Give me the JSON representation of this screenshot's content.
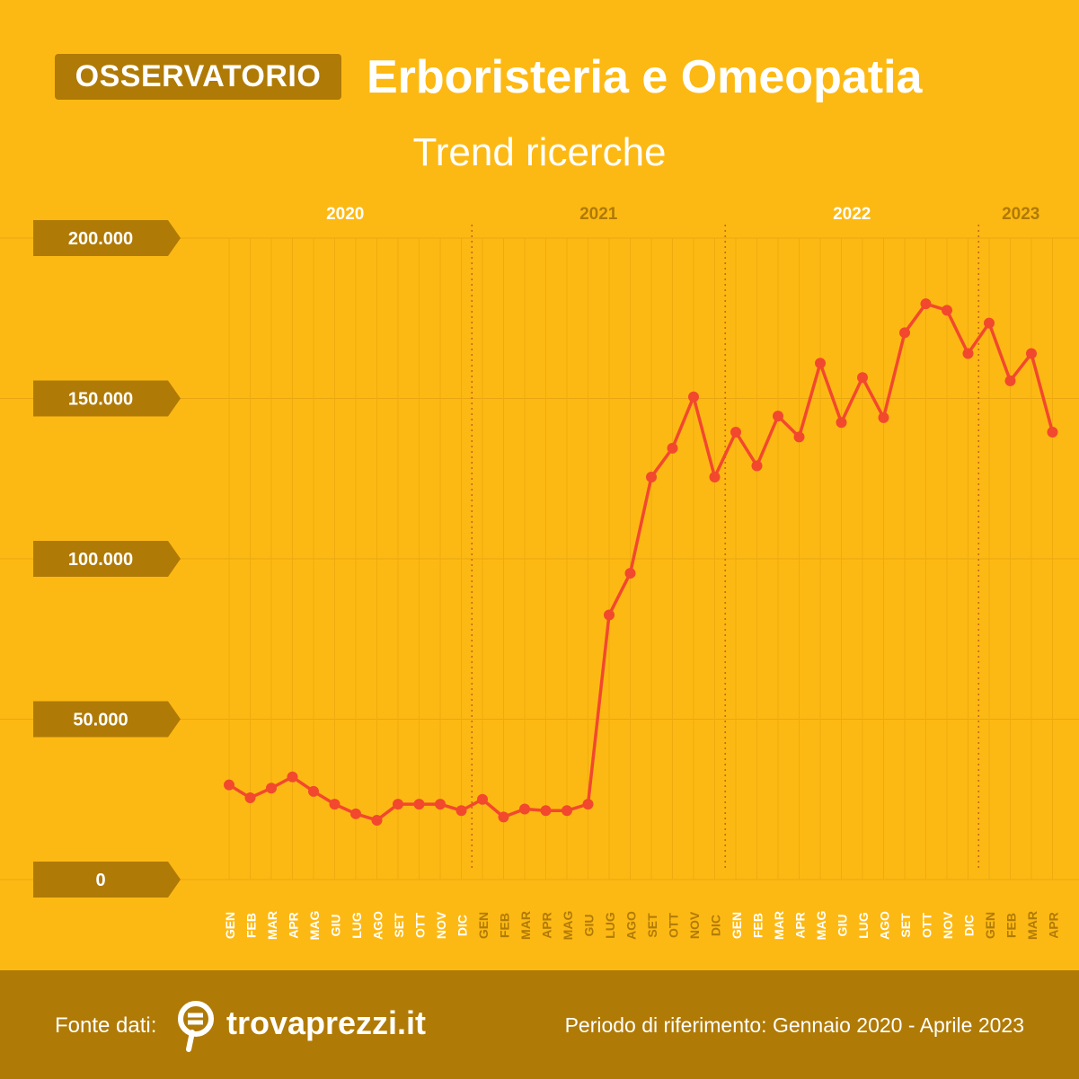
{
  "header": {
    "badge": "OSSERVATORIO",
    "title": "Erboristeria e Omeopatia",
    "subtitle": "Trend ricerche"
  },
  "footer": {
    "fonte_label": "Fonte dati:",
    "brand": "trovaprezzi.it",
    "periodo": "Periodo di riferimento: Gennaio 2020 - Aprile 2023"
  },
  "colors": {
    "background": "#FDB913",
    "accent_dark": "#B07A06",
    "line": "#F2482E",
    "year_label": "#FFFFFF",
    "year_label_muted": "#B07A06"
  },
  "chart_data": {
    "type": "line",
    "title": "Trend ricerche",
    "ylim": [
      0,
      200000
    ],
    "y_ticks": [
      {
        "value": 0,
        "label": "0"
      },
      {
        "value": 50000,
        "label": "50.000"
      },
      {
        "value": 100000,
        "label": "100.000"
      },
      {
        "value": 150000,
        "label": "150.000"
      },
      {
        "value": 200000,
        "label": "200.000"
      }
    ],
    "years": [
      {
        "label": "2020",
        "first_index": 0,
        "last_index": 11,
        "highlight": true
      },
      {
        "label": "2021",
        "first_index": 12,
        "last_index": 23,
        "highlight": false
      },
      {
        "label": "2022",
        "first_index": 24,
        "last_index": 35,
        "highlight": true
      },
      {
        "label": "2023",
        "first_index": 36,
        "last_index": 39,
        "highlight": false
      }
    ],
    "x": [
      "GEN",
      "FEB",
      "MAR",
      "APR",
      "MAG",
      "GIU",
      "LUG",
      "AGO",
      "SET",
      "OTT",
      "NOV",
      "DIC",
      "GEN",
      "FEB",
      "MAR",
      "APR",
      "MAG",
      "GIU",
      "LUG",
      "AGO",
      "SET",
      "OTT",
      "NOV",
      "DIC",
      "GEN",
      "FEB",
      "MAR",
      "APR",
      "MAG",
      "GIU",
      "LUG",
      "AGO",
      "SET",
      "OTT",
      "NOV",
      "DIC",
      "GEN",
      "FEB",
      "MAR",
      "APR"
    ],
    "series": [
      {
        "values": [
          29500,
          25500,
          28500,
          32000,
          27500,
          23500,
          20500,
          18500,
          23500,
          23500,
          23500,
          21500,
          25000,
          19500,
          22000,
          21500,
          21500,
          23500,
          82500,
          95500,
          125500,
          134500,
          150500,
          125500,
          139500,
          129000,
          144500,
          138000,
          161000,
          142500,
          156500,
          144000,
          170500,
          179500,
          177500,
          164000,
          173500,
          155500,
          164000,
          139500
        ]
      }
    ]
  }
}
